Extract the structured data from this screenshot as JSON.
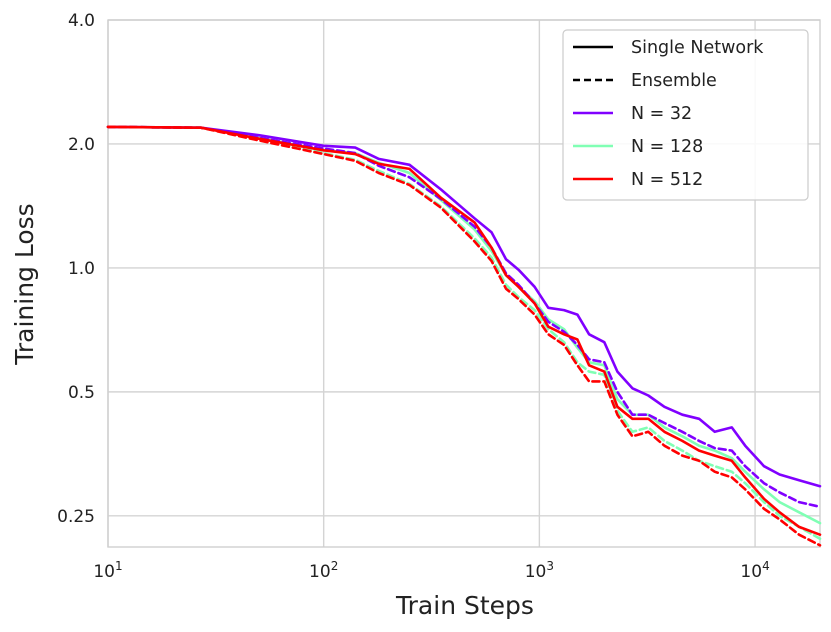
{
  "chart_data": {
    "type": "line",
    "xlabel": "Train Steps",
    "ylabel": "Training Loss",
    "xscale": "log",
    "yscale": "log",
    "xlim": [
      10,
      20000
    ],
    "ylim": [
      0.21,
      4.0
    ],
    "grid": true,
    "legend_position": "top-right",
    "x_ticks": [
      {
        "value": 10,
        "base": "10",
        "exp": "1"
      },
      {
        "value": 100,
        "base": "10",
        "exp": "2"
      },
      {
        "value": 1000,
        "base": "10",
        "exp": "3"
      },
      {
        "value": 10000,
        "base": "10",
        "exp": "4"
      }
    ],
    "y_ticks": [
      {
        "value": 4.0,
        "label": "4.0"
      },
      {
        "value": 2.0,
        "label": "2.0"
      },
      {
        "value": 1.0,
        "label": "1.0"
      },
      {
        "value": 0.5,
        "label": "0.5"
      },
      {
        "value": 0.25,
        "label": "0.25"
      }
    ],
    "legend": [
      {
        "label": "Single Network",
        "style": "solid",
        "color": "#000000"
      },
      {
        "label": "Ensemble",
        "style": "dashed",
        "color": "#000000"
      },
      {
        "label": "N = 32",
        "style": "solid",
        "color": "#8000ff"
      },
      {
        "label": "N = 128",
        "style": "solid",
        "color": "#80ffb4"
      },
      {
        "label": "N = 512",
        "style": "solid",
        "color": "#ff0000"
      }
    ],
    "series": [
      {
        "name": "N = 128 Ensemble",
        "color": "#80ffb4",
        "style": "dashed",
        "x": [
          10,
          27,
          50,
          100,
          140,
          180,
          250,
          350,
          500,
          600,
          700,
          800,
          950,
          1100,
          1300,
          1500,
          1700,
          2000,
          2300,
          2700,
          3200,
          3800,
          4600,
          5500,
          6500,
          7800,
          9000,
          11000,
          13000,
          16000,
          20000
        ],
        "y": [
          2.2,
          2.19,
          2.05,
          1.9,
          1.83,
          1.72,
          1.6,
          1.41,
          1.18,
          1.06,
          0.91,
          0.85,
          0.79,
          0.71,
          0.66,
          0.59,
          0.56,
          0.55,
          0.45,
          0.4,
          0.41,
          0.38,
          0.36,
          0.34,
          0.33,
          0.32,
          0.3,
          0.27,
          0.25,
          0.235,
          0.22
        ]
      },
      {
        "name": "N = 128 Single Network",
        "color": "#80ffb4",
        "style": "solid",
        "x": [
          10,
          27,
          50,
          100,
          140,
          180,
          250,
          350,
          500,
          600,
          700,
          800,
          950,
          1100,
          1300,
          1500,
          1700,
          2000,
          2300,
          2700,
          3200,
          3800,
          4600,
          5500,
          6500,
          7800,
          9000,
          11000,
          13000,
          16000,
          20000
        ],
        "y": [
          2.2,
          2.19,
          2.07,
          1.93,
          1.9,
          1.8,
          1.7,
          1.46,
          1.24,
          1.1,
          0.96,
          0.9,
          0.83,
          0.75,
          0.71,
          0.64,
          0.59,
          0.58,
          0.48,
          0.44,
          0.44,
          0.41,
          0.39,
          0.37,
          0.36,
          0.345,
          0.32,
          0.29,
          0.27,
          0.255,
          0.24
        ]
      },
      {
        "name": "N = 32 Ensemble",
        "color": "#8000ff",
        "style": "dashed",
        "x": [
          10,
          27,
          50,
          100,
          140,
          180,
          250,
          350,
          500,
          600,
          700,
          800,
          950,
          1100,
          1300,
          1500,
          1700,
          2000,
          2300,
          2700,
          3200,
          3800,
          4600,
          5500,
          6500,
          7800,
          9000,
          11000,
          13000,
          16000,
          20000
        ],
        "y": [
          2.2,
          2.19,
          2.07,
          1.95,
          1.9,
          1.77,
          1.66,
          1.47,
          1.26,
          1.12,
          0.97,
          0.91,
          0.82,
          0.74,
          0.7,
          0.65,
          0.6,
          0.59,
          0.5,
          0.44,
          0.44,
          0.42,
          0.4,
          0.38,
          0.365,
          0.36,
          0.33,
          0.3,
          0.285,
          0.27,
          0.263
        ]
      },
      {
        "name": "N = 32 Single Network",
        "color": "#8000ff",
        "style": "solid",
        "x": [
          10,
          27,
          50,
          100,
          140,
          180,
          250,
          350,
          500,
          600,
          700,
          800,
          950,
          1100,
          1300,
          1500,
          1700,
          2000,
          2300,
          2700,
          3200,
          3800,
          4600,
          5500,
          6500,
          7800,
          9000,
          11000,
          13000,
          16000,
          20000
        ],
        "y": [
          2.2,
          2.19,
          2.1,
          1.98,
          1.96,
          1.84,
          1.78,
          1.55,
          1.32,
          1.22,
          1.05,
          0.99,
          0.9,
          0.8,
          0.79,
          0.77,
          0.69,
          0.66,
          0.56,
          0.51,
          0.49,
          0.46,
          0.44,
          0.43,
          0.4,
          0.41,
          0.37,
          0.33,
          0.315,
          0.305,
          0.295
        ]
      },
      {
        "name": "N = 512 Ensemble",
        "color": "#ff0000",
        "style": "dashed",
        "x": [
          10,
          27,
          50,
          100,
          140,
          180,
          250,
          350,
          500,
          600,
          700,
          800,
          950,
          1100,
          1300,
          1500,
          1700,
          2000,
          2300,
          2700,
          3200,
          3800,
          4600,
          5500,
          6500,
          7800,
          9000,
          11000,
          13000,
          16000,
          20000
        ],
        "y": [
          2.2,
          2.19,
          2.04,
          1.89,
          1.82,
          1.7,
          1.59,
          1.4,
          1.16,
          1.04,
          0.89,
          0.84,
          0.77,
          0.69,
          0.65,
          0.58,
          0.53,
          0.53,
          0.44,
          0.39,
          0.4,
          0.37,
          0.35,
          0.34,
          0.32,
          0.31,
          0.29,
          0.26,
          0.245,
          0.225,
          0.212
        ]
      },
      {
        "name": "N = 512 Single Network",
        "color": "#ff0000",
        "style": "solid",
        "x": [
          10,
          27,
          50,
          100,
          140,
          180,
          250,
          350,
          500,
          600,
          700,
          800,
          950,
          1100,
          1300,
          1500,
          1700,
          2000,
          2300,
          2700,
          3200,
          3800,
          4600,
          5500,
          6500,
          7800,
          9000,
          11000,
          13000,
          16000,
          20000
        ],
        "y": [
          2.2,
          2.19,
          2.06,
          1.93,
          1.89,
          1.79,
          1.74,
          1.48,
          1.29,
          1.12,
          0.96,
          0.9,
          0.82,
          0.72,
          0.69,
          0.67,
          0.58,
          0.56,
          0.46,
          0.43,
          0.43,
          0.4,
          0.38,
          0.36,
          0.35,
          0.34,
          0.31,
          0.275,
          0.255,
          0.235,
          0.225
        ]
      }
    ]
  }
}
